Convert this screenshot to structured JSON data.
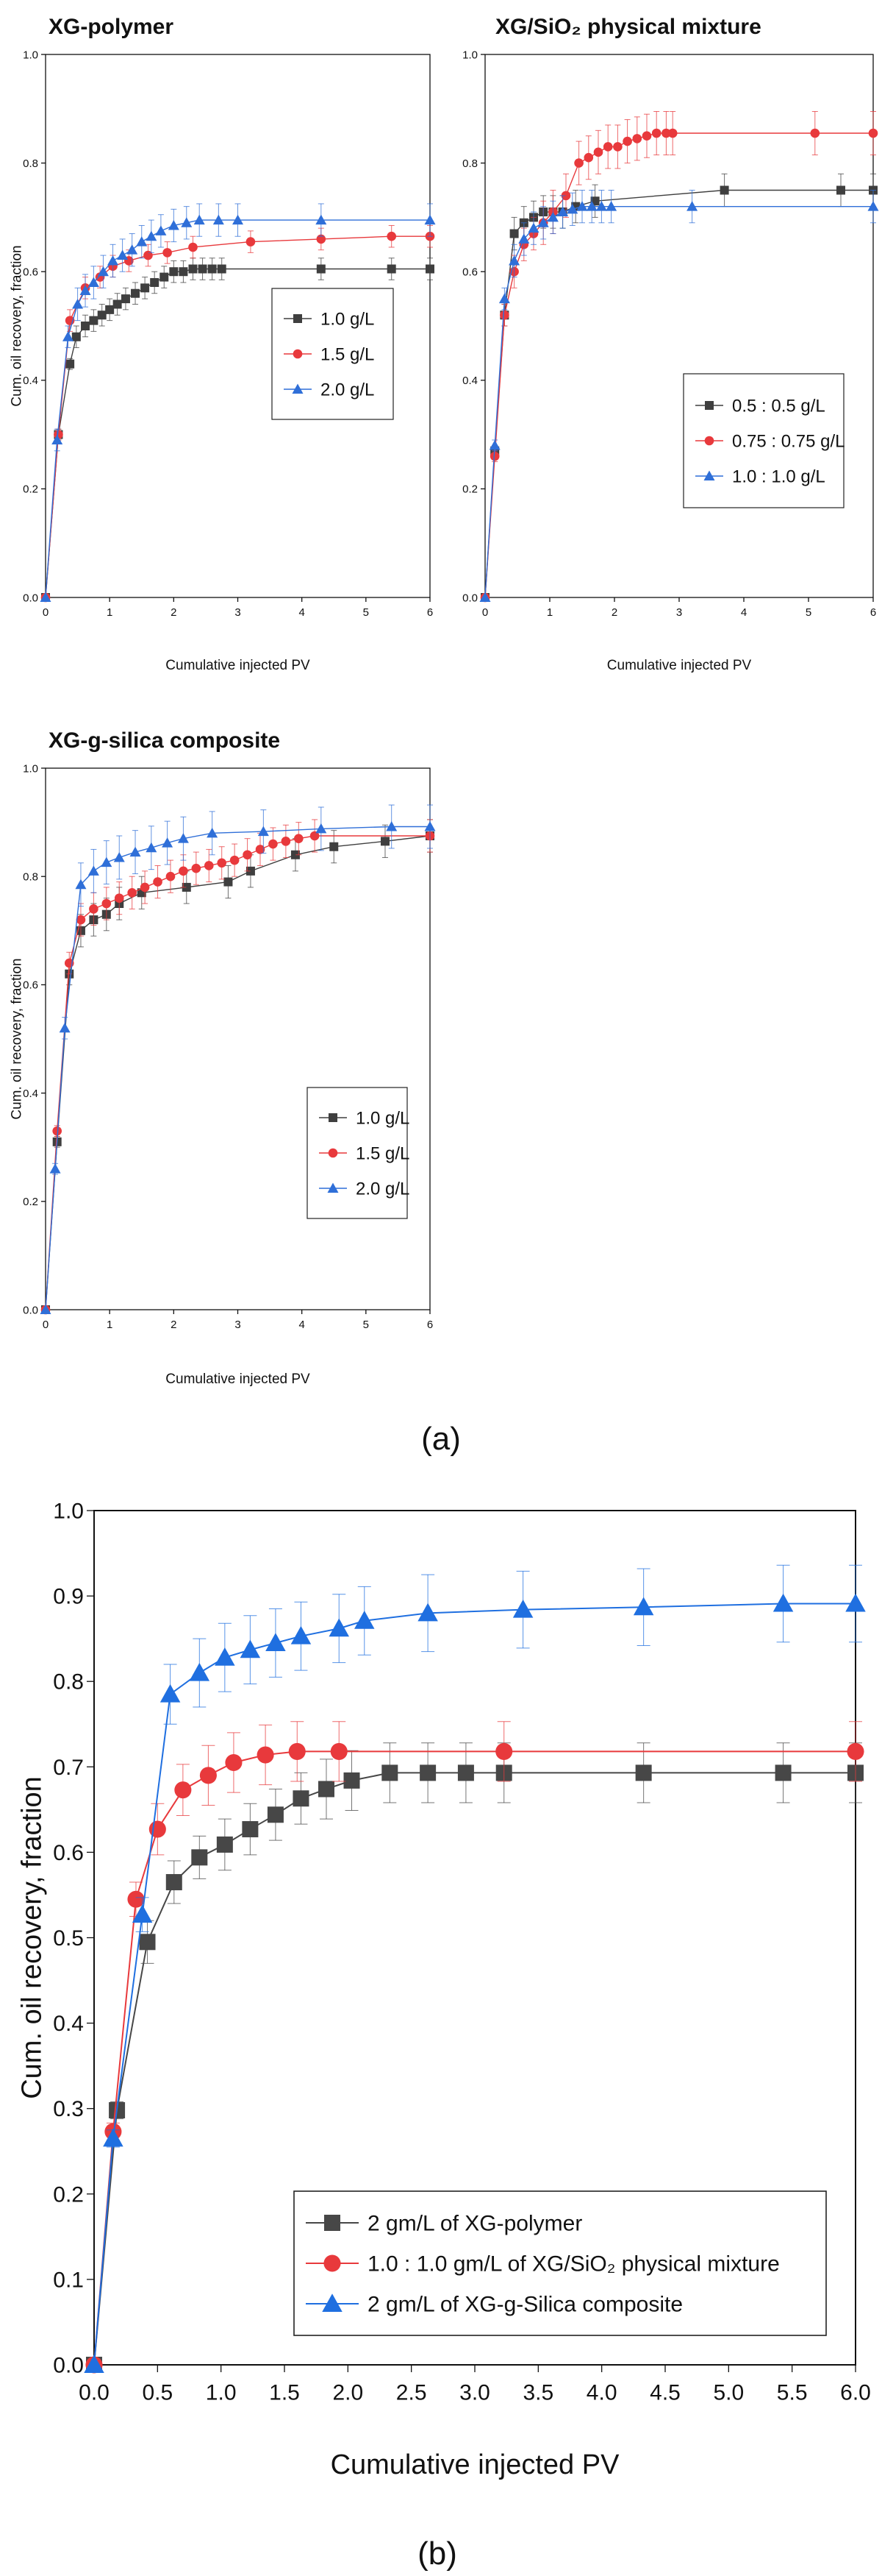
{
  "captions": {
    "a": "(a)",
    "b": "(b)"
  },
  "chart_data": [
    {
      "id": "a1",
      "type": "line",
      "title": "XG-polymer",
      "xlabel": "Cumulative injected PV",
      "ylabel": "Cum. oil recovery, fraction",
      "xlim": [
        0,
        6
      ],
      "ylim": [
        0,
        1.0
      ],
      "xticks": [
        0,
        1,
        2,
        3,
        4,
        5,
        6
      ],
      "xtick_labels": [
        "0",
        "1",
        "2",
        "3",
        "4",
        "5",
        "6"
      ],
      "yticks": [
        0,
        0.2,
        0.4,
        0.6,
        0.8,
        1.0
      ],
      "ytick_labels": [
        "0.0",
        "0.2",
        "0.4",
        "0.6",
        "0.8",
        "1.0"
      ],
      "grid": false,
      "legend_position": "center-right",
      "series": [
        {
          "name": "1.0 g/L",
          "color": "#3f3f3f",
          "marker": "square",
          "x": [
            0,
            0.2,
            0.38,
            0.48,
            0.62,
            0.75,
            0.88,
            1.0,
            1.12,
            1.25,
            1.4,
            1.55,
            1.7,
            1.85,
            2.0,
            2.15,
            2.3,
            2.45,
            2.6,
            2.75,
            4.3,
            5.4,
            6.0
          ],
          "y": [
            0,
            0.3,
            0.43,
            0.48,
            0.5,
            0.51,
            0.52,
            0.53,
            0.54,
            0.55,
            0.56,
            0.57,
            0.58,
            0.59,
            0.6,
            0.6,
            0.605,
            0.605,
            0.605,
            0.605,
            0.605,
            0.605,
            0.605
          ],
          "err": [
            0,
            0.01,
            0.01,
            0.02,
            0.02,
            0.02,
            0.02,
            0.02,
            0.02,
            0.02,
            0.02,
            0.02,
            0.02,
            0.02,
            0.02,
            0.02,
            0.02,
            0.02,
            0.02,
            0.02,
            0.02,
            0.02,
            0.02
          ]
        },
        {
          "name": "1.5 g/L",
          "color": "#e8393c",
          "marker": "circle",
          "x": [
            0,
            0.2,
            0.38,
            0.62,
            0.85,
            1.05,
            1.3,
            1.6,
            1.9,
            2.3,
            3.2,
            4.3,
            5.4,
            6.0
          ],
          "y": [
            0,
            0.3,
            0.51,
            0.57,
            0.59,
            0.61,
            0.62,
            0.63,
            0.635,
            0.645,
            0.655,
            0.66,
            0.665,
            0.665
          ],
          "err": [
            0,
            0.01,
            0.02,
            0.02,
            0.02,
            0.02,
            0.02,
            0.02,
            0.02,
            0.02,
            0.02,
            0.02,
            0.02,
            0.02
          ]
        },
        {
          "name": "2.0 g/L",
          "color": "#2f6fd8",
          "marker": "triangle",
          "x": [
            0,
            0.18,
            0.35,
            0.5,
            0.62,
            0.75,
            0.9,
            1.05,
            1.2,
            1.35,
            1.5,
            1.65,
            1.8,
            2.0,
            2.2,
            2.4,
            2.7,
            3.0,
            4.3,
            6.0
          ],
          "y": [
            0,
            0.29,
            0.48,
            0.54,
            0.565,
            0.58,
            0.6,
            0.62,
            0.63,
            0.64,
            0.655,
            0.665,
            0.675,
            0.685,
            0.69,
            0.695,
            0.695,
            0.695,
            0.695,
            0.695
          ],
          "err": [
            0,
            0.02,
            0.02,
            0.03,
            0.03,
            0.03,
            0.03,
            0.03,
            0.03,
            0.03,
            0.03,
            0.03,
            0.03,
            0.03,
            0.03,
            0.03,
            0.03,
            0.03,
            0.03,
            0.03
          ]
        }
      ]
    },
    {
      "id": "a2",
      "type": "line",
      "title": "XG/SiO₂ physical mixture",
      "xlabel": "Cumulative injected PV",
      "ylabel": "",
      "xlim": [
        0,
        6
      ],
      "ylim": [
        0,
        1.0
      ],
      "xticks": [
        0,
        1,
        2,
        3,
        4,
        5,
        6
      ],
      "xtick_labels": [
        "0",
        "1",
        "2",
        "3",
        "4",
        "5",
        "6"
      ],
      "yticks": [
        0,
        0.2,
        0.4,
        0.6,
        0.8,
        1.0
      ],
      "ytick_labels": [
        "0.0",
        "0.2",
        "0.4",
        "0.6",
        "0.8",
        "1.0"
      ],
      "grid": false,
      "legend_position": "center-right",
      "series": [
        {
          "name": "0.5 : 0.5 g/L",
          "color": "#3f3f3f",
          "marker": "square",
          "x": [
            0,
            0.15,
            0.3,
            0.45,
            0.6,
            0.75,
            0.9,
            1.05,
            1.2,
            1.4,
            1.7,
            3.7,
            5.5,
            6.0
          ],
          "y": [
            0,
            0.27,
            0.52,
            0.67,
            0.69,
            0.7,
            0.71,
            0.71,
            0.71,
            0.72,
            0.73,
            0.75,
            0.75,
            0.75
          ],
          "err": [
            0,
            0.01,
            0.02,
            0.03,
            0.03,
            0.03,
            0.03,
            0.03,
            0.03,
            0.03,
            0.03,
            0.03,
            0.03,
            0.03
          ]
        },
        {
          "name": "0.75 : 0.75 g/L",
          "color": "#e8393c",
          "marker": "circle",
          "x": [
            0,
            0.15,
            0.3,
            0.45,
            0.6,
            0.75,
            0.9,
            1.05,
            1.25,
            1.45,
            1.6,
            1.75,
            1.9,
            2.05,
            2.2,
            2.35,
            2.5,
            2.65,
            2.8,
            2.9,
            5.1,
            6.0
          ],
          "y": [
            0,
            0.26,
            0.52,
            0.6,
            0.65,
            0.67,
            0.69,
            0.71,
            0.74,
            0.8,
            0.81,
            0.82,
            0.83,
            0.83,
            0.84,
            0.845,
            0.85,
            0.855,
            0.855,
            0.855,
            0.855,
            0.855
          ],
          "err": [
            0,
            0.01,
            0.02,
            0.03,
            0.03,
            0.03,
            0.04,
            0.04,
            0.04,
            0.04,
            0.04,
            0.04,
            0.04,
            0.04,
            0.04,
            0.04,
            0.04,
            0.04,
            0.04,
            0.04,
            0.04,
            0.04
          ]
        },
        {
          "name": "1.0 : 1.0 g/L",
          "color": "#2f6fd8",
          "marker": "triangle",
          "x": [
            0,
            0.15,
            0.3,
            0.45,
            0.6,
            0.75,
            0.9,
            1.05,
            1.2,
            1.35,
            1.5,
            1.65,
            1.8,
            1.95,
            3.2,
            6.0
          ],
          "y": [
            0,
            0.28,
            0.55,
            0.62,
            0.66,
            0.68,
            0.69,
            0.7,
            0.71,
            0.715,
            0.72,
            0.72,
            0.72,
            0.72,
            0.72,
            0.72
          ],
          "err": [
            0,
            0.01,
            0.02,
            0.03,
            0.03,
            0.03,
            0.03,
            0.03,
            0.03,
            0.03,
            0.03,
            0.03,
            0.03,
            0.03,
            0.03,
            0.03
          ]
        }
      ]
    },
    {
      "id": "a3",
      "type": "line",
      "title": "XG-g-silica composite",
      "xlabel": "Cumulative injected PV",
      "ylabel": "Cum. oil recovery, fraction",
      "xlim": [
        0,
        6
      ],
      "ylim": [
        0,
        1.0
      ],
      "xticks": [
        0,
        1,
        2,
        3,
        4,
        5,
        6
      ],
      "xtick_labels": [
        "0",
        "1",
        "2",
        "3",
        "4",
        "5",
        "6"
      ],
      "yticks": [
        0,
        0.2,
        0.4,
        0.6,
        0.8,
        1.0
      ],
      "ytick_labels": [
        "0.0",
        "0.2",
        "0.4",
        "0.6",
        "0.8",
        "1.0"
      ],
      "grid": false,
      "legend_position": "bottom-right",
      "series": [
        {
          "name": "1.0 g/L",
          "color": "#3f3f3f",
          "marker": "square",
          "x": [
            0,
            0.18,
            0.37,
            0.55,
            0.75,
            0.95,
            1.15,
            1.5,
            2.2,
            2.85,
            3.2,
            3.9,
            4.5,
            5.3,
            6.0
          ],
          "y": [
            0,
            0.31,
            0.62,
            0.7,
            0.72,
            0.73,
            0.75,
            0.77,
            0.78,
            0.79,
            0.81,
            0.84,
            0.855,
            0.865,
            0.875
          ],
          "err": [
            0,
            0.01,
            0.02,
            0.03,
            0.03,
            0.03,
            0.03,
            0.03,
            0.03,
            0.03,
            0.03,
            0.03,
            0.03,
            0.03,
            0.03
          ]
        },
        {
          "name": "1.5 g/L",
          "color": "#e8393c",
          "marker": "circle",
          "x": [
            0,
            0.18,
            0.37,
            0.55,
            0.75,
            0.95,
            1.15,
            1.35,
            1.55,
            1.75,
            1.95,
            2.15,
            2.35,
            2.55,
            2.75,
            2.95,
            3.15,
            3.35,
            3.55,
            3.75,
            3.95,
            4.2,
            6.0
          ],
          "y": [
            0,
            0.33,
            0.64,
            0.72,
            0.74,
            0.75,
            0.76,
            0.77,
            0.78,
            0.79,
            0.8,
            0.81,
            0.815,
            0.82,
            0.825,
            0.83,
            0.84,
            0.85,
            0.86,
            0.865,
            0.87,
            0.875,
            0.875
          ],
          "err": [
            0,
            0.01,
            0.02,
            0.03,
            0.03,
            0.03,
            0.03,
            0.03,
            0.03,
            0.03,
            0.03,
            0.03,
            0.03,
            0.03,
            0.03,
            0.03,
            0.03,
            0.03,
            0.03,
            0.03,
            0.03,
            0.03,
            0.03
          ]
        },
        {
          "name": "2.0 g/L",
          "color": "#2f6fd8",
          "marker": "triangle",
          "x": [
            0,
            0.15,
            0.3,
            0.55,
            0.75,
            0.95,
            1.15,
            1.4,
            1.65,
            1.9,
            2.15,
            2.6,
            3.4,
            4.3,
            5.4,
            6.0
          ],
          "y": [
            0,
            0.26,
            0.52,
            0.785,
            0.81,
            0.826,
            0.835,
            0.845,
            0.853,
            0.862,
            0.87,
            0.88,
            0.883,
            0.888,
            0.892,
            0.892
          ],
          "err": [
            0,
            0.01,
            0.02,
            0.04,
            0.04,
            0.04,
            0.04,
            0.04,
            0.04,
            0.04,
            0.04,
            0.04,
            0.04,
            0.04,
            0.04,
            0.04
          ]
        }
      ]
    },
    {
      "id": "b",
      "type": "line",
      "title": "",
      "xlabel": "Cumulative injected PV",
      "ylabel": "Cum. oil recovery, fraction",
      "xlim": [
        0,
        6
      ],
      "ylim": [
        0,
        1.0
      ],
      "xticks": [
        0,
        0.5,
        1.0,
        1.5,
        2.0,
        2.5,
        3.0,
        3.5,
        4.0,
        4.5,
        5.0,
        5.5,
        6.0
      ],
      "xtick_labels": [
        "0.0",
        "0.5",
        "1.0",
        "1.5",
        "2.0",
        "2.5",
        "3.0",
        "3.5",
        "4.0",
        "4.5",
        "5.0",
        "5.5",
        "6.0"
      ],
      "yticks": [
        0,
        0.1,
        0.2,
        0.3,
        0.4,
        0.5,
        0.6,
        0.7,
        0.8,
        0.9,
        1.0
      ],
      "ytick_labels": [
        "0.0",
        "0.1",
        "0.2",
        "0.3",
        "0.4",
        "0.5",
        "0.6",
        "0.7",
        "0.8",
        "0.9",
        "1.0"
      ],
      "grid": false,
      "legend_position": "bottom-right",
      "series": [
        {
          "name": "2 gm/L of XG-polymer",
          "color": "#474747",
          "marker": "square",
          "x": [
            0,
            0.18,
            0.42,
            0.63,
            0.83,
            1.03,
            1.23,
            1.43,
            1.63,
            1.83,
            2.03,
            2.33,
            2.63,
            2.93,
            3.23,
            4.33,
            5.43,
            6.0
          ],
          "y": [
            0,
            0.298,
            0.495,
            0.565,
            0.594,
            0.609,
            0.627,
            0.644,
            0.663,
            0.674,
            0.684,
            0.693,
            0.693,
            0.693,
            0.693,
            0.693,
            0.693,
            0.693
          ],
          "err": [
            0,
            0.01,
            0.025,
            0.025,
            0.025,
            0.03,
            0.03,
            0.03,
            0.03,
            0.035,
            0.035,
            0.035,
            0.035,
            0.035,
            0.035,
            0.035,
            0.035,
            0.035
          ]
        },
        {
          "name": "1.0 : 1.0 gm/L of XG/SiO₂ physical mixture",
          "color": "#e8393c",
          "marker": "circle",
          "x": [
            0,
            0.15,
            0.33,
            0.5,
            0.7,
            0.9,
            1.1,
            1.35,
            1.6,
            1.93,
            3.23,
            6.0
          ],
          "y": [
            0,
            0.273,
            0.545,
            0.627,
            0.673,
            0.69,
            0.705,
            0.714,
            0.718,
            0.718,
            0.718,
            0.718
          ],
          "err": [
            0,
            0.01,
            0.02,
            0.03,
            0.03,
            0.035,
            0.035,
            0.035,
            0.035,
            0.035,
            0.035,
            0.035
          ]
        },
        {
          "name": "2 gm/L of XG-g-Silica composite",
          "color": "#1f6fe0",
          "marker": "triangle",
          "x": [
            0,
            0.15,
            0.38,
            0.6,
            0.83,
            1.03,
            1.23,
            1.43,
            1.63,
            1.93,
            2.13,
            2.63,
            3.38,
            4.33,
            5.43,
            6.0
          ],
          "y": [
            0,
            0.265,
            0.527,
            0.785,
            0.81,
            0.828,
            0.837,
            0.845,
            0.853,
            0.862,
            0.871,
            0.88,
            0.884,
            0.887,
            0.891,
            0.891
          ],
          "err": [
            0,
            0.01,
            0.02,
            0.035,
            0.04,
            0.04,
            0.04,
            0.04,
            0.04,
            0.04,
            0.04,
            0.045,
            0.045,
            0.045,
            0.045,
            0.045
          ]
        }
      ]
    }
  ]
}
